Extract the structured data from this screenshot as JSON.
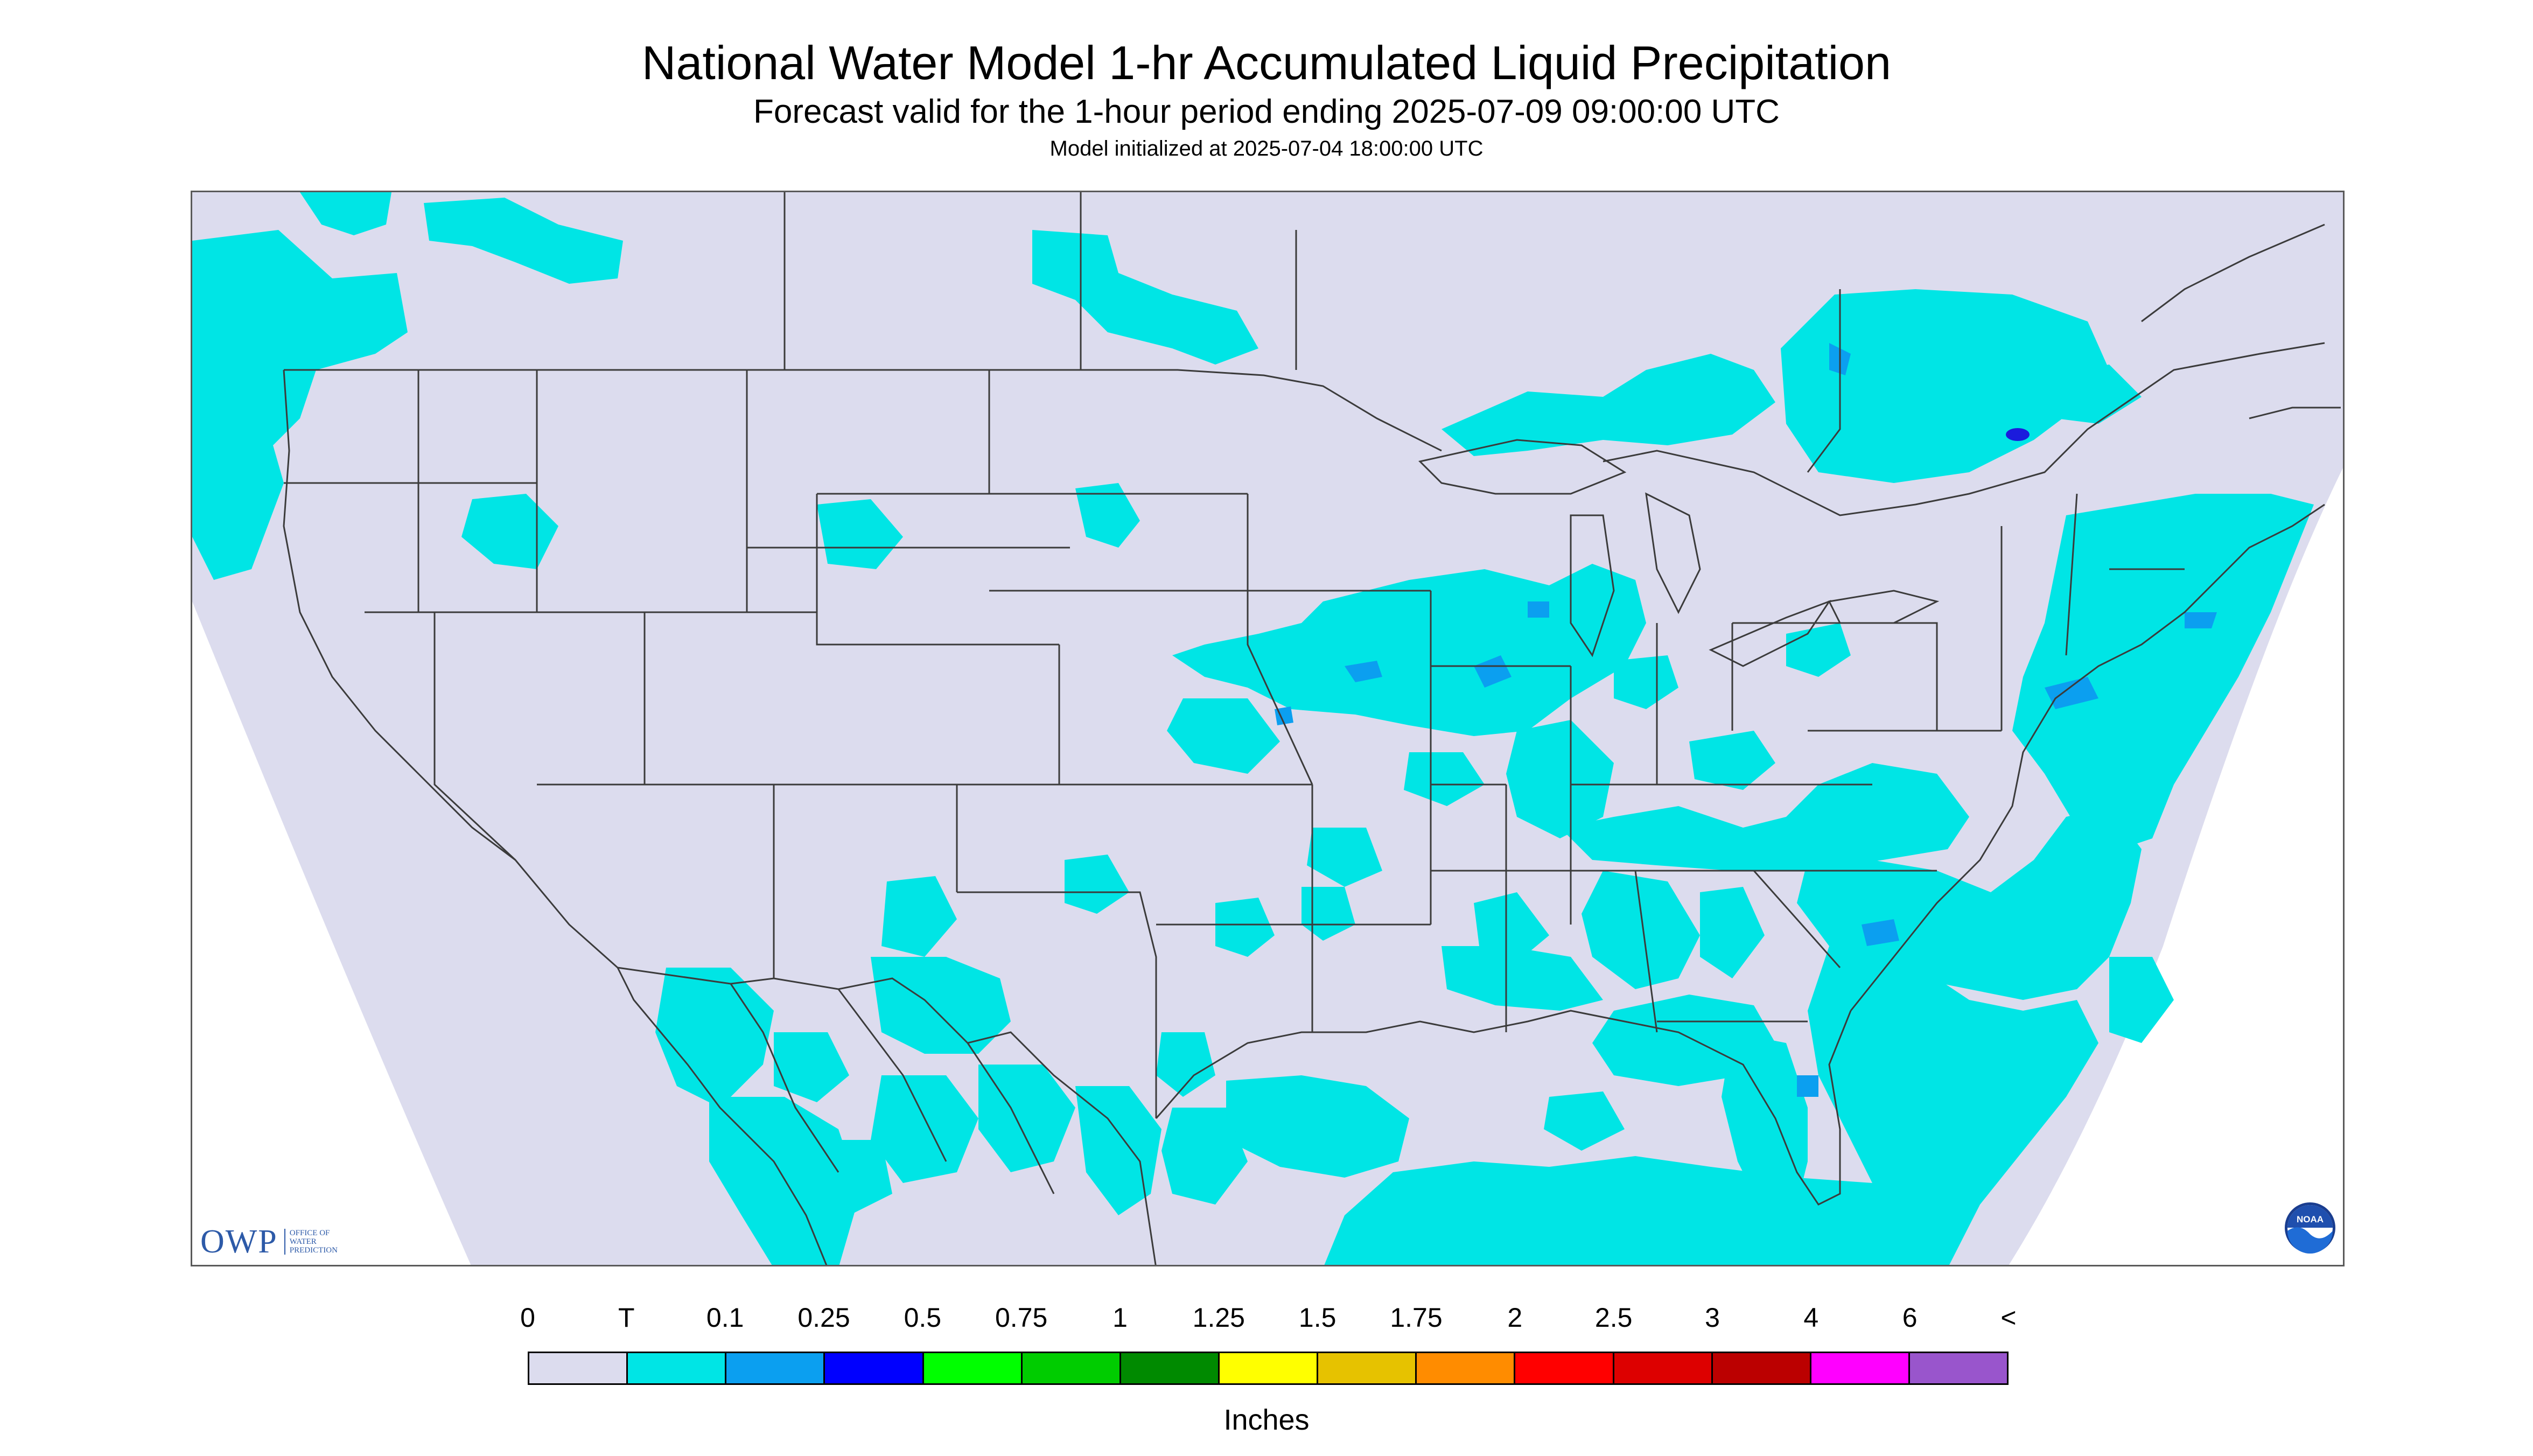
{
  "header": {
    "title": "National Water Model 1-hr Accumulated Liquid Precipitation",
    "subtitle": "Forecast valid for the 1-hour period ending 2025-07-09 09:00:00 UTC",
    "init_line": "Model initialized at 2025-07-04 18:00:00 UTC"
  },
  "map": {
    "background_color": "#dcdcee",
    "precip_color": "#00e5e5",
    "heavy_color": "#0b9ff0",
    "max_color": "#1b1bdd",
    "boundary_color": "#3b3b3b",
    "outside_color": "#ffffff"
  },
  "logos": {
    "owp_text": "OWP",
    "owp_sub_1": "OFFICE OF",
    "owp_sub_2": "WATER",
    "owp_sub_3": "PREDICTION",
    "noaa_text": "NOAA"
  },
  "legend": {
    "ticks": [
      "0",
      "T",
      "0.1",
      "0.25",
      "0.5",
      "0.75",
      "1",
      "1.25",
      "1.5",
      "1.75",
      "2",
      "2.5",
      "3",
      "4",
      "6",
      "<"
    ],
    "colors": [
      "#dcdcee",
      "#00e5e5",
      "#0b9ff0",
      "#0000ff",
      "#00ff00",
      "#00cc00",
      "#008a00",
      "#ffff00",
      "#e6c200",
      "#ff8c00",
      "#ff0000",
      "#dd0000",
      "#bb0000",
      "#ff00ff",
      "#9955cc"
    ],
    "units": "Inches"
  }
}
